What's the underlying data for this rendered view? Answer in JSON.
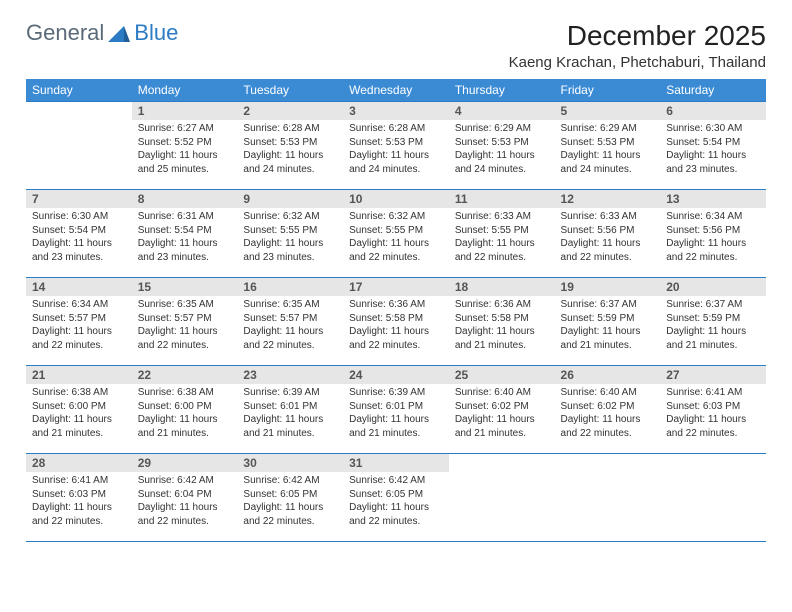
{
  "brand": {
    "name1": "General",
    "name2": "Blue"
  },
  "title": "December 2025",
  "location": "Kaeng Krachan, Phetchaburi, Thailand",
  "colors": {
    "header_bg": "#3b8bd4",
    "border": "#2b7cc4",
    "daynum_bg": "#e6e6e6",
    "text": "#333333",
    "logo_gray": "#5a6a78",
    "logo_blue": "#2b7cc4"
  },
  "weekdays": [
    "Sunday",
    "Monday",
    "Tuesday",
    "Wednesday",
    "Thursday",
    "Friday",
    "Saturday"
  ],
  "weeks": [
    [
      {
        "empty": true
      },
      {
        "n": "1",
        "sr": "Sunrise: 6:27 AM",
        "ss": "Sunset: 5:52 PM",
        "dl": "Daylight: 11 hours and 25 minutes."
      },
      {
        "n": "2",
        "sr": "Sunrise: 6:28 AM",
        "ss": "Sunset: 5:53 PM",
        "dl": "Daylight: 11 hours and 24 minutes."
      },
      {
        "n": "3",
        "sr": "Sunrise: 6:28 AM",
        "ss": "Sunset: 5:53 PM",
        "dl": "Daylight: 11 hours and 24 minutes."
      },
      {
        "n": "4",
        "sr": "Sunrise: 6:29 AM",
        "ss": "Sunset: 5:53 PM",
        "dl": "Daylight: 11 hours and 24 minutes."
      },
      {
        "n": "5",
        "sr": "Sunrise: 6:29 AM",
        "ss": "Sunset: 5:53 PM",
        "dl": "Daylight: 11 hours and 24 minutes."
      },
      {
        "n": "6",
        "sr": "Sunrise: 6:30 AM",
        "ss": "Sunset: 5:54 PM",
        "dl": "Daylight: 11 hours and 23 minutes."
      }
    ],
    [
      {
        "n": "7",
        "sr": "Sunrise: 6:30 AM",
        "ss": "Sunset: 5:54 PM",
        "dl": "Daylight: 11 hours and 23 minutes."
      },
      {
        "n": "8",
        "sr": "Sunrise: 6:31 AM",
        "ss": "Sunset: 5:54 PM",
        "dl": "Daylight: 11 hours and 23 minutes."
      },
      {
        "n": "9",
        "sr": "Sunrise: 6:32 AM",
        "ss": "Sunset: 5:55 PM",
        "dl": "Daylight: 11 hours and 23 minutes."
      },
      {
        "n": "10",
        "sr": "Sunrise: 6:32 AM",
        "ss": "Sunset: 5:55 PM",
        "dl": "Daylight: 11 hours and 22 minutes."
      },
      {
        "n": "11",
        "sr": "Sunrise: 6:33 AM",
        "ss": "Sunset: 5:55 PM",
        "dl": "Daylight: 11 hours and 22 minutes."
      },
      {
        "n": "12",
        "sr": "Sunrise: 6:33 AM",
        "ss": "Sunset: 5:56 PM",
        "dl": "Daylight: 11 hours and 22 minutes."
      },
      {
        "n": "13",
        "sr": "Sunrise: 6:34 AM",
        "ss": "Sunset: 5:56 PM",
        "dl": "Daylight: 11 hours and 22 minutes."
      }
    ],
    [
      {
        "n": "14",
        "sr": "Sunrise: 6:34 AM",
        "ss": "Sunset: 5:57 PM",
        "dl": "Daylight: 11 hours and 22 minutes."
      },
      {
        "n": "15",
        "sr": "Sunrise: 6:35 AM",
        "ss": "Sunset: 5:57 PM",
        "dl": "Daylight: 11 hours and 22 minutes."
      },
      {
        "n": "16",
        "sr": "Sunrise: 6:35 AM",
        "ss": "Sunset: 5:57 PM",
        "dl": "Daylight: 11 hours and 22 minutes."
      },
      {
        "n": "17",
        "sr": "Sunrise: 6:36 AM",
        "ss": "Sunset: 5:58 PM",
        "dl": "Daylight: 11 hours and 22 minutes."
      },
      {
        "n": "18",
        "sr": "Sunrise: 6:36 AM",
        "ss": "Sunset: 5:58 PM",
        "dl": "Daylight: 11 hours and 21 minutes."
      },
      {
        "n": "19",
        "sr": "Sunrise: 6:37 AM",
        "ss": "Sunset: 5:59 PM",
        "dl": "Daylight: 11 hours and 21 minutes."
      },
      {
        "n": "20",
        "sr": "Sunrise: 6:37 AM",
        "ss": "Sunset: 5:59 PM",
        "dl": "Daylight: 11 hours and 21 minutes."
      }
    ],
    [
      {
        "n": "21",
        "sr": "Sunrise: 6:38 AM",
        "ss": "Sunset: 6:00 PM",
        "dl": "Daylight: 11 hours and 21 minutes."
      },
      {
        "n": "22",
        "sr": "Sunrise: 6:38 AM",
        "ss": "Sunset: 6:00 PM",
        "dl": "Daylight: 11 hours and 21 minutes."
      },
      {
        "n": "23",
        "sr": "Sunrise: 6:39 AM",
        "ss": "Sunset: 6:01 PM",
        "dl": "Daylight: 11 hours and 21 minutes."
      },
      {
        "n": "24",
        "sr": "Sunrise: 6:39 AM",
        "ss": "Sunset: 6:01 PM",
        "dl": "Daylight: 11 hours and 21 minutes."
      },
      {
        "n": "25",
        "sr": "Sunrise: 6:40 AM",
        "ss": "Sunset: 6:02 PM",
        "dl": "Daylight: 11 hours and 21 minutes."
      },
      {
        "n": "26",
        "sr": "Sunrise: 6:40 AM",
        "ss": "Sunset: 6:02 PM",
        "dl": "Daylight: 11 hours and 22 minutes."
      },
      {
        "n": "27",
        "sr": "Sunrise: 6:41 AM",
        "ss": "Sunset: 6:03 PM",
        "dl": "Daylight: 11 hours and 22 minutes."
      }
    ],
    [
      {
        "n": "28",
        "sr": "Sunrise: 6:41 AM",
        "ss": "Sunset: 6:03 PM",
        "dl": "Daylight: 11 hours and 22 minutes."
      },
      {
        "n": "29",
        "sr": "Sunrise: 6:42 AM",
        "ss": "Sunset: 6:04 PM",
        "dl": "Daylight: 11 hours and 22 minutes."
      },
      {
        "n": "30",
        "sr": "Sunrise: 6:42 AM",
        "ss": "Sunset: 6:05 PM",
        "dl": "Daylight: 11 hours and 22 minutes."
      },
      {
        "n": "31",
        "sr": "Sunrise: 6:42 AM",
        "ss": "Sunset: 6:05 PM",
        "dl": "Daylight: 11 hours and 22 minutes."
      },
      {
        "empty": true
      },
      {
        "empty": true
      },
      {
        "empty": true
      }
    ]
  ]
}
